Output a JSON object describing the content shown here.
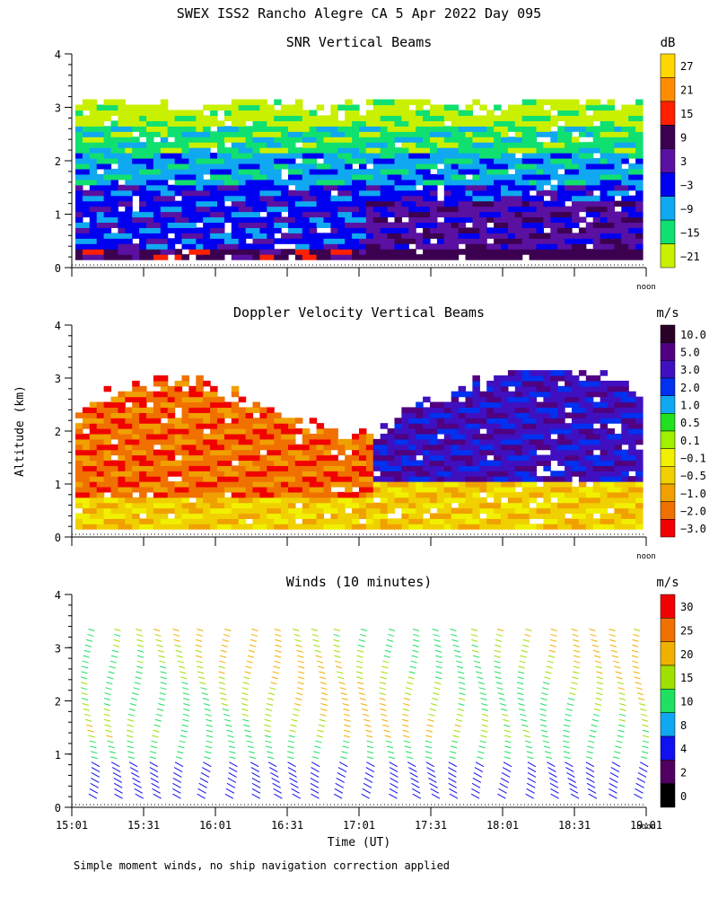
{
  "figure": {
    "title": "SWEX ISS2 Rancho Alegre CA   5 Apr 2022 Day 095",
    "footnote": "Simple moment winds, no ship navigation correction applied",
    "xlabel": "Time (UT)",
    "ylabel": "Altitude (km)",
    "noon_label": "noon"
  },
  "chart_data": [
    {
      "type": "heatmap",
      "title": "SNR Vertical Beams",
      "unit": "dB",
      "x_ticks": [
        "15:01",
        "15:31",
        "16:01",
        "16:31",
        "17:01",
        "17:31",
        "18:01",
        "18:31",
        "19:01"
      ],
      "y_ticks": [
        0,
        1,
        2,
        3,
        4
      ],
      "ylim": [
        0,
        4
      ],
      "colorbar_labels": [
        "27",
        "21",
        "15",
        "9",
        "3",
        "−3",
        "−9",
        "−15",
        "−21"
      ],
      "colorbar_colors": [
        "#ffd700",
        "#ff8c00",
        "#ff2000",
        "#3c0050",
        "#5a10a0",
        "#0000f0",
        "#10a8f0",
        "#10e070",
        "#c8f000"
      ],
      "x_tick_labels_shown": false
    },
    {
      "type": "heatmap",
      "title": "Doppler Velocity Vertical Beams",
      "unit": "m/s",
      "x_ticks": [
        "15:01",
        "15:31",
        "16:01",
        "16:31",
        "17:01",
        "17:31",
        "18:01",
        "18:31",
        "19:01"
      ],
      "y_ticks": [
        0,
        1,
        2,
        3,
        4
      ],
      "ylim": [
        0,
        4
      ],
      "colorbar_labels": [
        "10.0",
        "5.0",
        "3.0",
        "2.0",
        "1.0",
        "0.5",
        "0.1",
        "−0.1",
        "−0.5",
        "−1.0",
        "−2.0",
        "−3.0"
      ],
      "colorbar_colors": [
        "#280028",
        "#500080",
        "#4010c0",
        "#0030f0",
        "#10a8f0",
        "#20e020",
        "#a0f000",
        "#f0f000",
        "#f0d000",
        "#f0a000",
        "#f07000",
        "#f00000"
      ],
      "x_tick_labels_shown": false
    },
    {
      "type": "barbs",
      "title": "Winds (10 minutes)",
      "unit": "m/s",
      "x_ticks": [
        "15:01",
        "15:31",
        "16:01",
        "16:31",
        "17:01",
        "17:31",
        "18:01",
        "18:31",
        "19:01"
      ],
      "y_ticks": [
        0,
        1,
        2,
        3,
        4
      ],
      "ylim": [
        0,
        4
      ],
      "colorbar_labels": [
        "30",
        "25",
        "20",
        "15",
        "10",
        "8",
        "4",
        "2",
        "0"
      ],
      "colorbar_colors": [
        "#f00000",
        "#f07000",
        "#f0b000",
        "#a0e000",
        "#20e060",
        "#10a8f0",
        "#1010f0",
        "#500060",
        "#000000"
      ],
      "x_tick_labels_shown": true
    }
  ]
}
